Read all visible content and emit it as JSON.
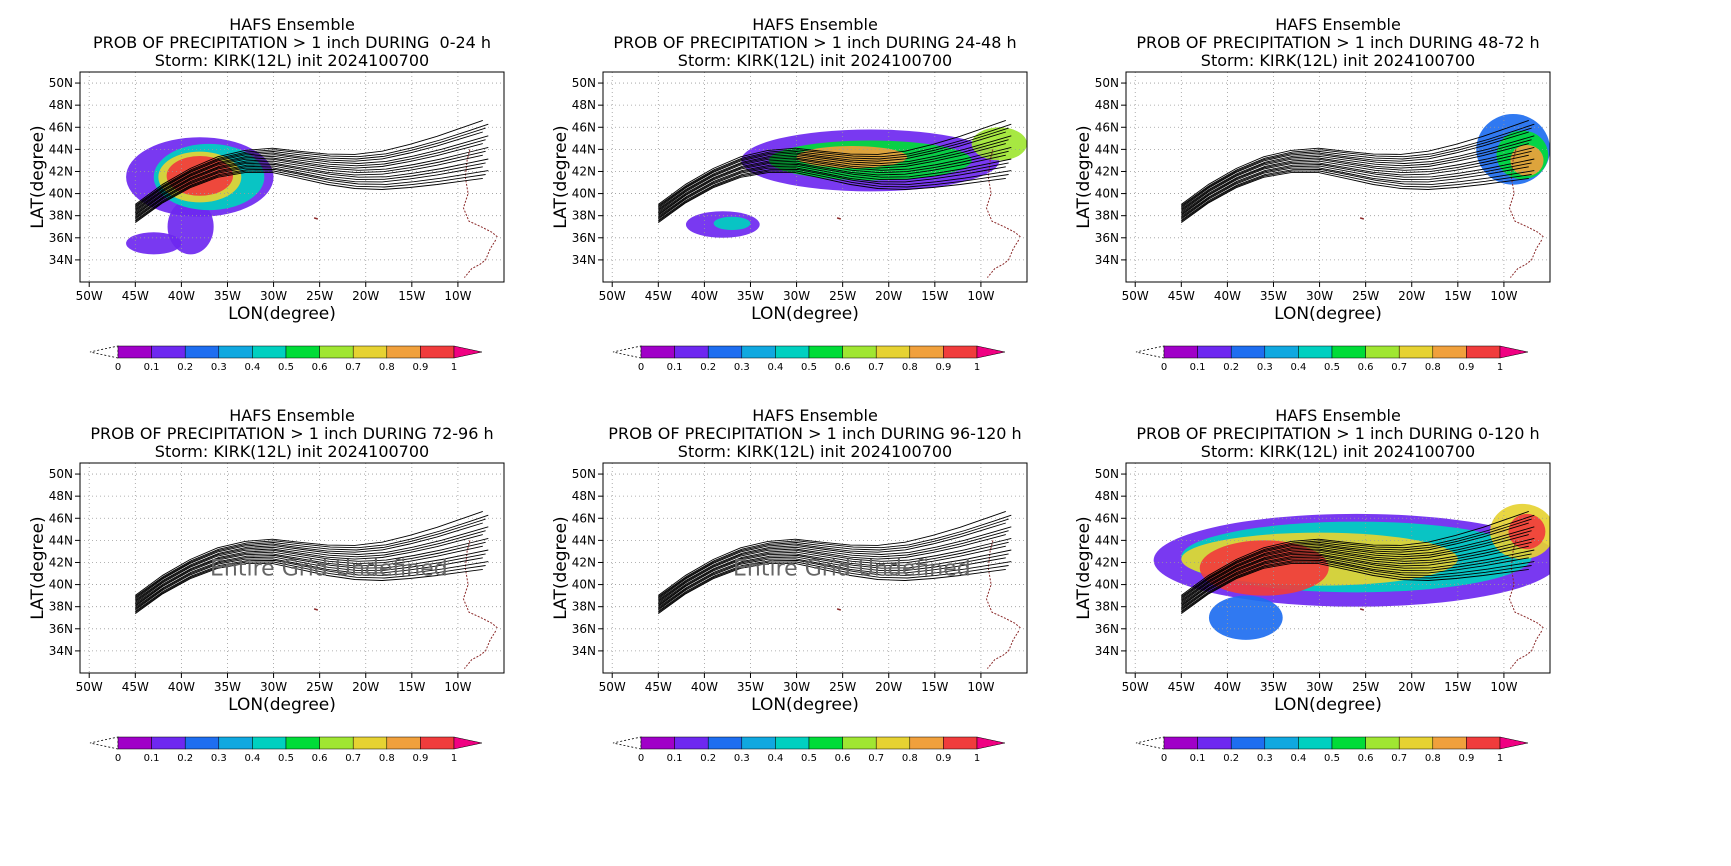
{
  "figure": {
    "title_line1": "HAFS Ensemble",
    "title_line3": "Storm: KIRK(12L) init 2024100700",
    "xlabel": "LON(degree)",
    "ylabel": "LAT(degree)",
    "undefined_message": "Entire Grid Undefined"
  },
  "panels": [
    {
      "title_line2": "PROB OF PRECIPITATION > 1 inch DURING  0-24 h",
      "period": "0-24 h",
      "precip_regions": "early"
    },
    {
      "title_line2": "PROB OF PRECIPITATION > 1 inch DURING 24-48 h",
      "period": "24-48 h",
      "precip_regions": "mid"
    },
    {
      "title_line2": "PROB OF PRECIPITATION > 1 inch DURING 48-72 h",
      "period": "48-72 h",
      "precip_regions": "late"
    },
    {
      "title_line2": "PROB OF PRECIPITATION > 1 inch DURING 72-96 h",
      "period": "72-96 h",
      "precip_regions": "none"
    },
    {
      "title_line2": "PROB OF PRECIPITATION > 1 inch DURING 96-120 h",
      "period": "96-120 h",
      "precip_regions": "none"
    },
    {
      "title_line2": "PROB OF PRECIPITATION > 1 inch DURING 0-120 h",
      "period": "0-120 h",
      "precip_regions": "all"
    }
  ],
  "chart_data": {
    "type": "heatmap",
    "x_ticks": [
      "50W",
      "45W",
      "40W",
      "35W",
      "30W",
      "25W",
      "20W",
      "15W",
      "10W"
    ],
    "x_tick_values": [
      -50,
      -45,
      -40,
      -35,
      -30,
      -25,
      -20,
      -15,
      -10
    ],
    "y_ticks": [
      "34N",
      "36N",
      "38N",
      "40N",
      "42N",
      "44N",
      "46N",
      "48N",
      "50N"
    ],
    "y_tick_values": [
      34,
      36,
      38,
      40,
      42,
      44,
      46,
      48,
      50
    ],
    "xlim": [
      -51,
      -5
    ],
    "ylim": [
      32,
      51
    ],
    "grid": true,
    "colorbar": {
      "labels": [
        "0",
        "0.1",
        "0.2",
        "0.3",
        "0.4",
        "0.5",
        "0.6",
        "0.7",
        "0.8",
        "0.9",
        "1"
      ],
      "colors": [
        "#a000c8",
        "#6e28f0",
        "#1e6ef0",
        "#10a8e0",
        "#00d0c0",
        "#00dc38",
        "#a0e632",
        "#e6d232",
        "#f0a03c",
        "#f03c3c",
        "#f00082"
      ],
      "below_color": "#ffffff"
    },
    "ensemble_track_mean": [
      [
        -45,
        38.2
      ],
      [
        -42,
        40.0
      ],
      [
        -39,
        41.4
      ],
      [
        -36,
        42.4
      ],
      [
        -33,
        42.9
      ],
      [
        -30,
        43.0
      ],
      [
        -27,
        42.6
      ],
      [
        -24,
        42.2
      ],
      [
        -21,
        42.0
      ],
      [
        -18,
        42.1
      ],
      [
        -15,
        42.5
      ],
      [
        -12,
        43.0
      ],
      [
        -9,
        43.6
      ],
      [
        -7,
        44.0
      ]
    ]
  }
}
